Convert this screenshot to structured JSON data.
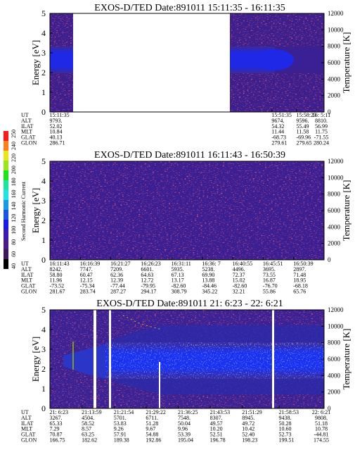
{
  "chart_data": [
    {
      "type": "heatmap",
      "title": "EXOS-D/TED   Date:891011  15:11:35 - 16:11:35",
      "ylabel": "Energy [eV]",
      "y2label": "Temperature [K]",
      "ylim": [
        0,
        5
      ],
      "yticks": [
        "0",
        "1",
        "2",
        "3",
        "4",
        "5"
      ],
      "y2lim": [
        0,
        12000
      ],
      "y2ticks": [
        "0",
        "2000",
        "4000",
        "6000",
        "8000",
        "10000",
        "12000"
      ],
      "gaps": [
        [
          0.06,
          0.81
        ]
      ],
      "ephemeris": {
        "row_labels": [
          "UT",
          "ALT",
          "ILAT",
          "MLT",
          "GLAT",
          "GLON"
        ],
        "columns": [
          {
            "pos": 0.0,
            "values": [
              "15:11:35",
              "9793.",
              "52.02",
              "10.84",
              "40.13",
              "286.71"
            ]
          },
          {
            "pos": 0.81,
            "values": [
              "15:51:35",
              "9674.",
              "54.32",
              "11.44",
              "-68.73",
              "279.61"
            ]
          },
          {
            "pos": 0.9,
            "values": [
              "15:58:23",
              "9596.",
              "55.49",
              "11.58",
              "-69.96",
              "279.65"
            ]
          },
          {
            "pos": 1.0,
            "values": [
              "16: 5:11",
              "8810.",
              "56.99",
              "11.75",
              "-71.55",
              "280.24"
            ]
          }
        ]
      }
    },
    {
      "type": "heatmap",
      "title": "EXOS-D/TED   Date:891011  16:11:43 - 16:50:39",
      "ylabel": "Energy [eV]",
      "y2label": "Temperature [K]",
      "ylim": [
        0,
        5
      ],
      "yticks": [
        "0",
        "1",
        "2",
        "3",
        "4",
        "5"
      ],
      "y2lim": [
        0,
        12000
      ],
      "y2ticks": [
        "0",
        "2000",
        "4000",
        "6000",
        "8000",
        "10000",
        "12000"
      ],
      "gaps": [],
      "ephemeris": {
        "row_labels": [
          "UT",
          "ALT",
          "ILAT",
          "MLT",
          "GLAT",
          "GLON"
        ],
        "columns": [
          {
            "pos": 0.0,
            "values": [
              "16:11:43",
              "8242.",
              "58.80",
              "11.96",
              "-73.52",
              "281.67"
            ]
          },
          {
            "pos": 0.111,
            "values": [
              "16:16:39",
              "7747.",
              "60.47",
              "12.15",
              "-75.34",
              "283.74"
            ]
          },
          {
            "pos": 0.222,
            "values": [
              "16:21:27",
              "7209.",
              "62.36",
              "12.39",
              "-77.44",
              "287.27"
            ]
          },
          {
            "pos": 0.333,
            "values": [
              "16:26:23",
              "6601.",
              "64.63",
              "12.72",
              "-79.95",
              "294.17"
            ]
          },
          {
            "pos": 0.444,
            "values": [
              "16:31:11",
              "5935.",
              "67.13",
              "13.17",
              "-82.60",
              "308.79"
            ]
          },
          {
            "pos": 0.556,
            "values": [
              "16:36: 7",
              "5238.",
              "69.90",
              "13.88",
              "-84.46",
              "345.22"
            ]
          },
          {
            "pos": 0.667,
            "values": [
              "16:40:55",
              "4496.",
              "72.37",
              "15.02",
              "-82.60",
              "32.21"
            ]
          },
          {
            "pos": 0.778,
            "values": [
              "16:45:51",
              "3695.",
              "73.55",
              "16.87",
              "-76.70",
              "55.86"
            ]
          },
          {
            "pos": 0.889,
            "values": [
              "16:50:39",
              "2897.",
              "71.48",
              "18.95",
              "-68.18",
              "65.76"
            ]
          }
        ]
      }
    },
    {
      "type": "heatmap",
      "title": "EXOS-D/TED   Date:891011  21: 6:23 - 22: 6:21",
      "ylabel": "Energy [eV]",
      "y2label": "Temperature [K]",
      "ylim": [
        0,
        5
      ],
      "yticks": [
        "0",
        "1",
        "2",
        "3",
        "4",
        "5"
      ],
      "y2lim": [
        0,
        12000
      ],
      "y2ticks": [
        "0",
        "2000",
        "4000",
        "6000",
        "8000",
        "10000",
        "12000"
      ],
      "gaps": [
        [
          0.16,
          0.17
        ],
        [
          0.215,
          0.222
        ],
        [
          0.81,
          0.817
        ]
      ],
      "ephemeris": {
        "row_labels": [
          "UT",
          "ALT",
          "ILAT",
          "MLT",
          "GLAT",
          "GLON"
        ],
        "columns": [
          {
            "pos": 0.0,
            "values": [
              "21: 6:23",
              "3267.",
              "65.33",
              "7.29",
              "70.87",
              "166.75"
            ]
          },
          {
            "pos": 0.117,
            "values": [
              "21:13:59",
              "4504.",
              "58.52",
              "8.57",
              "63.25",
              "182.62"
            ]
          },
          {
            "pos": 0.234,
            "values": [
              "21:21:54",
              "5701.",
              "53.83",
              "9.26",
              "57.91",
              "189.38"
            ]
          },
          {
            "pos": 0.351,
            "values": [
              "21:29:22",
              "6711.",
              "51.28",
              "9.67",
              "54.88",
              "192.86"
            ]
          },
          {
            "pos": 0.468,
            "values": [
              "21:36:25",
              "7548.",
              "50.04",
              "9.96",
              "53.39",
              "195.04"
            ]
          },
          {
            "pos": 0.585,
            "values": [
              "21:43:53",
              "8307.",
              "49.57",
              "10.20",
              "52.51",
              "196.78"
            ]
          },
          {
            "pos": 0.702,
            "values": [
              "21:51:29",
              "8945.",
              "49.72",
              "10.42",
              "52.40",
              "198.23"
            ]
          },
          {
            "pos": 0.836,
            "values": [
              "21:58:53",
              "9438.",
              "50.28",
              "10.60",
              "52.73",
              "199.51"
            ]
          },
          {
            "pos": 1.0,
            "values": [
              "22: 6:21",
              "9808.",
              "51.18",
              "10.78",
              "-44.81",
              "174.55"
            ]
          }
        ]
      }
    }
  ],
  "colorbar": {
    "label": "Second Harmonic Current",
    "ticks": [
      "40",
      "60",
      "80",
      "100",
      "120",
      "140",
      "160",
      "180",
      "200",
      "220",
      "240",
      "250"
    ]
  }
}
